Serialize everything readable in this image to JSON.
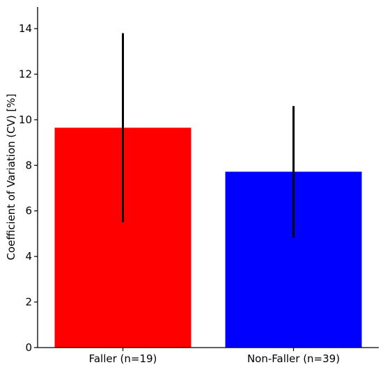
{
  "chart_data": {
    "type": "bar",
    "categories": [
      "Faller (n=19)",
      "Non-Faller (n=39)"
    ],
    "values": [
      9.65,
      7.72
    ],
    "error": [
      4.15,
      2.88
    ],
    "colors": [
      "#ff0000",
      "#0000ff"
    ],
    "error_color": "#000000",
    "title": "",
    "xlabel": "",
    "ylabel": "Coefficient of Variation (CV) [%]",
    "ylim": [
      0,
      14.95
    ],
    "yticks": [
      0,
      2,
      4,
      6,
      8,
      10,
      12,
      14
    ],
    "ytick_labels": [
      "0",
      "2",
      "4",
      "6",
      "8",
      "10",
      "12",
      "14"
    ],
    "grid": false,
    "legend": "none"
  }
}
